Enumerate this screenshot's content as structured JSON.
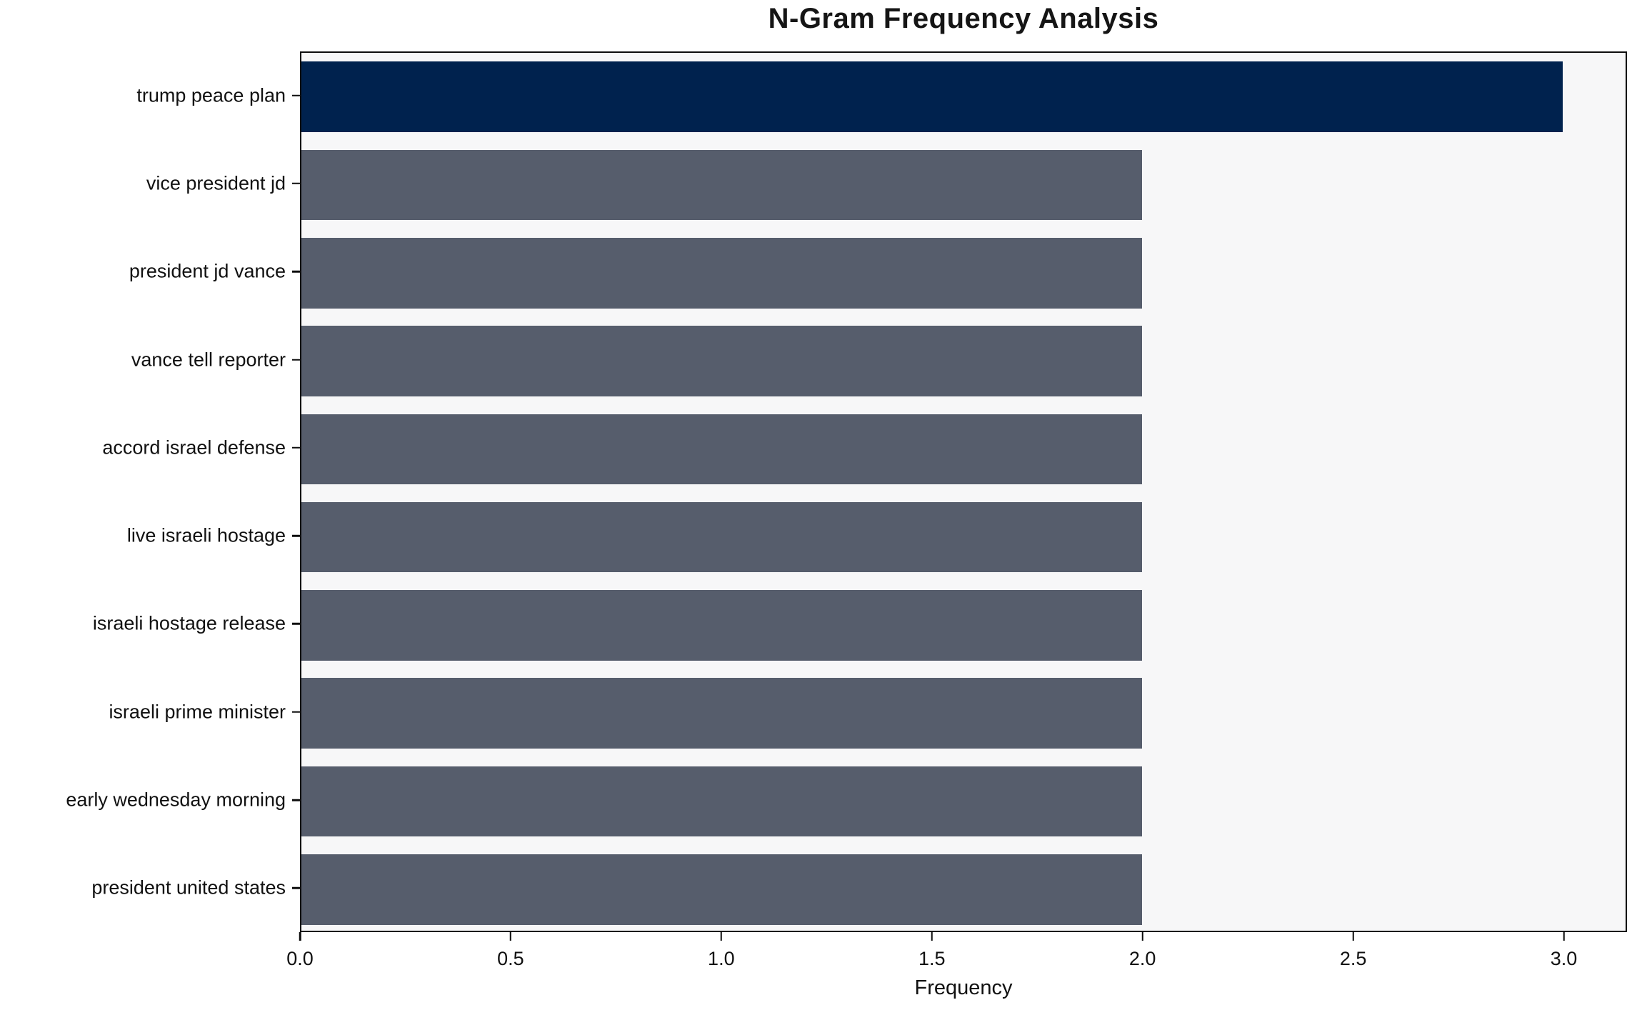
{
  "chart_data": {
    "type": "bar",
    "orientation": "horizontal",
    "title": "N-Gram Frequency Analysis",
    "xlabel": "Frequency",
    "ylabel": "",
    "categories": [
      "trump peace plan",
      "vice president jd",
      "president jd vance",
      "vance tell reporter",
      "accord israel defense",
      "live israeli hostage",
      "israeli hostage release",
      "israeli prime minister",
      "early wednesday morning",
      "president united states"
    ],
    "values": [
      3,
      2,
      2,
      2,
      2,
      2,
      2,
      2,
      2,
      2
    ],
    "bar_colors": [
      "#00224e",
      "#565d6c",
      "#565d6c",
      "#565d6c",
      "#565d6c",
      "#565d6c",
      "#565d6c",
      "#565d6c",
      "#565d6c",
      "#565d6c"
    ],
    "highlight_color": "#00224e",
    "default_color": "#565d6c",
    "plot_background": "#f7f7f8",
    "spine_color": "#0d0d0d",
    "xlim": [
      0,
      3.15
    ],
    "x_ticks": [
      {
        "value": 0.0,
        "label": "0.0"
      },
      {
        "value": 0.5,
        "label": "0.5"
      },
      {
        "value": 1.0,
        "label": "1.0"
      },
      {
        "value": 1.5,
        "label": "1.5"
      },
      {
        "value": 2.0,
        "label": "2.0"
      },
      {
        "value": 2.5,
        "label": "2.5"
      },
      {
        "value": 3.0,
        "label": "3.0"
      }
    ],
    "grid": false,
    "legend": null,
    "bar_height_fraction": 0.8
  }
}
